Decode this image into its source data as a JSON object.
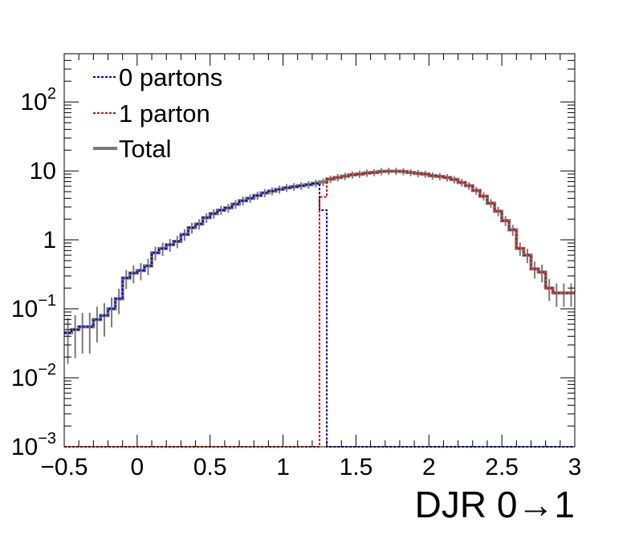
{
  "chart_data": {
    "type": "line",
    "style": "step histogram",
    "xlabel": "DJR 0→1",
    "ylabel": "",
    "title": "",
    "xlim": [
      -0.5,
      3.0
    ],
    "ylim": [
      0.001,
      500
    ],
    "yscale": "log",
    "legend_position": "top-left",
    "grid": false,
    "x_ticks": [
      "−0.5",
      "0",
      "0.5",
      "1",
      "1.5",
      "2",
      "2.5",
      "3"
    ],
    "y_ticks": [
      {
        "value": 0.001,
        "base": "10",
        "exp": "−3"
      },
      {
        "value": 0.01,
        "base": "10",
        "exp": "−2"
      },
      {
        "value": 0.1,
        "base": "10",
        "exp": "−1"
      },
      {
        "value": 1,
        "base": "1",
        "exp": ""
      },
      {
        "value": 10,
        "base": "10",
        "exp": ""
      },
      {
        "value": 100,
        "base": "10",
        "exp": "2"
      }
    ],
    "bin_edges": [
      -0.5,
      -0.45,
      -0.4,
      -0.35,
      -0.3,
      -0.25,
      -0.2,
      -0.15,
      -0.1,
      -0.05,
      0,
      0.05,
      0.1,
      0.15,
      0.2,
      0.25,
      0.3,
      0.35,
      0.4,
      0.45,
      0.5,
      0.55,
      0.6,
      0.65,
      0.7,
      0.75,
      0.8,
      0.85,
      0.9,
      0.95,
      1.0,
      1.05,
      1.1,
      1.15,
      1.2,
      1.25,
      1.3,
      1.35,
      1.4,
      1.45,
      1.5,
      1.55,
      1.6,
      1.65,
      1.7,
      1.75,
      1.8,
      1.85,
      1.9,
      1.95,
      2.0,
      2.05,
      2.1,
      2.15,
      2.2,
      2.25,
      2.3,
      2.35,
      2.4,
      2.45,
      2.5,
      2.55,
      2.6,
      2.65,
      2.7,
      2.75,
      2.8,
      2.85,
      2.9,
      2.95,
      3.0
    ],
    "series": [
      {
        "name": "0 partons",
        "color": "#0000cc",
        "dash": "dotted",
        "values": [
          0.045,
          0.05,
          0.055,
          0.055,
          0.07,
          0.08,
          0.1,
          0.14,
          0.28,
          0.33,
          0.36,
          0.42,
          0.65,
          0.75,
          0.85,
          0.95,
          1.2,
          1.5,
          1.7,
          2.1,
          2.4,
          2.7,
          2.9,
          3.3,
          3.7,
          4.0,
          4.4,
          4.8,
          5.1,
          5.4,
          5.7,
          5.9,
          6.1,
          6.3,
          6.6,
          2.7,
          0.001,
          0.001,
          0.001,
          0.001,
          0.001,
          0.001,
          0.001,
          0.001,
          0.001,
          0.001,
          0.001,
          0.001,
          0.001,
          0.001,
          0.001,
          0.001,
          0.001,
          0.001,
          0.001,
          0.001,
          0.001,
          0.001,
          0.001,
          0.001,
          0.001,
          0.001,
          0.001,
          0.001,
          0.001,
          0.001,
          0.001,
          0.001,
          0.001,
          0.001
        ]
      },
      {
        "name": "1 parton",
        "color": "#dd0000",
        "dash": "dotted",
        "values": [
          0.001,
          0.001,
          0.001,
          0.001,
          0.001,
          0.001,
          0.001,
          0.001,
          0.001,
          0.001,
          0.001,
          0.001,
          0.001,
          0.001,
          0.001,
          0.001,
          0.001,
          0.001,
          0.001,
          0.001,
          0.001,
          0.001,
          0.001,
          0.001,
          0.001,
          0.001,
          0.001,
          0.001,
          0.001,
          0.001,
          0.001,
          0.001,
          0.001,
          0.001,
          0.001,
          4.2,
          7.6,
          8.0,
          8.4,
          8.8,
          9.0,
          9.3,
          9.5,
          9.8,
          9.9,
          9.9,
          9.8,
          9.5,
          9.2,
          9.0,
          8.5,
          8.3,
          8.0,
          7.5,
          6.8,
          6.1,
          5.2,
          4.3,
          3.4,
          2.6,
          1.9,
          1.4,
          0.75,
          0.6,
          0.38,
          0.34,
          0.2,
          0.17,
          0.17,
          0.17
        ]
      },
      {
        "name": "Total",
        "color": "#7a7a7a",
        "dash": "solid",
        "values": [
          0.045,
          0.05,
          0.055,
          0.055,
          0.07,
          0.08,
          0.1,
          0.14,
          0.28,
          0.33,
          0.36,
          0.42,
          0.65,
          0.75,
          0.85,
          0.95,
          1.2,
          1.5,
          1.7,
          2.1,
          2.4,
          2.7,
          2.9,
          3.3,
          3.7,
          4.0,
          4.4,
          4.8,
          5.1,
          5.4,
          5.7,
          5.9,
          6.1,
          6.3,
          6.6,
          6.9,
          7.6,
          8.0,
          8.4,
          8.8,
          9.0,
          9.3,
          9.5,
          9.8,
          9.9,
          9.9,
          9.8,
          9.5,
          9.2,
          9.0,
          8.5,
          8.3,
          8.0,
          7.5,
          6.8,
          6.1,
          5.2,
          4.3,
          3.4,
          2.6,
          1.9,
          1.4,
          0.75,
          0.6,
          0.38,
          0.34,
          0.2,
          0.17,
          0.17,
          0.17
        ]
      }
    ]
  }
}
